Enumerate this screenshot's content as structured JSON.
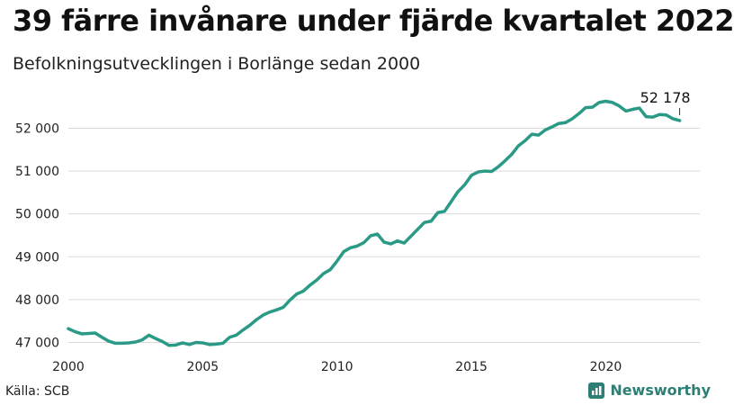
{
  "page": {
    "title": "39 färre invånare under fjärde kvartalet 2022",
    "subtitle": "Befolkningsutvecklingen i Borlänge sedan 2000",
    "source": "Källa: SCB",
    "brand": "Newsworthy",
    "brand_icon": "bar-chart-icon"
  },
  "colors": {
    "line": "#2a9a87",
    "grid": "#d9d9d9",
    "brand": "#2d7f76"
  },
  "chart_data": {
    "type": "line",
    "title": "39 färre invånare under fjärde kvartalet 2022",
    "subtitle": "Befolkningsutvecklingen i Borlänge sedan 2000",
    "xlabel": "",
    "ylabel": "",
    "xlim": [
      2000,
      2023.5
    ],
    "ylim": [
      46800,
      52850
    ],
    "grid": true,
    "x_ticks": [
      2000,
      2005,
      2010,
      2015,
      2020
    ],
    "x_tick_labels": [
      "2000",
      "2005",
      "2010",
      "2015",
      "2020"
    ],
    "y_ticks": [
      47000,
      48000,
      49000,
      50000,
      51000,
      52000
    ],
    "y_tick_labels": [
      "47 000",
      "48 000",
      "49 000",
      "50 000",
      "51 000",
      "52 000"
    ],
    "end_label": "52 178",
    "series": [
      {
        "x": [
          2000.0,
          2000.25,
          2000.5,
          2000.75,
          2001.0,
          2001.25,
          2001.5,
          2001.75,
          2002.0,
          2002.25,
          2002.5,
          2002.75,
          2003.0,
          2003.25,
          2003.5,
          2003.75,
          2004.0,
          2004.25,
          2004.5,
          2004.75,
          2005.0,
          2005.25,
          2005.5,
          2005.75,
          2006.0,
          2006.25,
          2006.5,
          2006.75,
          2007.0,
          2007.25,
          2007.5,
          2007.75,
          2008.0,
          2008.25,
          2008.5,
          2008.75,
          2009.0,
          2009.25,
          2009.5,
          2009.75,
          2010.0,
          2010.25,
          2010.5,
          2010.75,
          2011.0,
          2011.25,
          2011.5,
          2011.75,
          2012.0,
          2012.25,
          2012.5,
          2012.75,
          2013.0,
          2013.25,
          2013.5,
          2013.75,
          2014.0,
          2014.25,
          2014.5,
          2014.75,
          2015.0,
          2015.25,
          2015.5,
          2015.75,
          2016.0,
          2016.25,
          2016.5,
          2016.75,
          2017.0,
          2017.25,
          2017.5,
          2017.75,
          2018.0,
          2018.25,
          2018.5,
          2018.75,
          2019.0,
          2019.25,
          2019.5,
          2019.75,
          2020.0,
          2020.25,
          2020.5,
          2020.75,
          2021.0,
          2021.25,
          2021.5,
          2021.75,
          2022.0,
          2022.25,
          2022.5,
          2022.75
        ],
        "values": [
          47320,
          47250,
          47200,
          47210,
          47220,
          47120,
          47030,
          46980,
          46980,
          46990,
          47010,
          47060,
          47170,
          47090,
          47020,
          46930,
          46940,
          46990,
          46950,
          47000,
          46990,
          46950,
          46960,
          46980,
          47120,
          47170,
          47290,
          47400,
          47530,
          47640,
          47710,
          47760,
          47820,
          47990,
          48130,
          48200,
          48340,
          48460,
          48610,
          48700,
          48900,
          49120,
          49210,
          49250,
          49330,
          49490,
          49530,
          49340,
          49300,
          49370,
          49320,
          49480,
          49640,
          49800,
          49830,
          50030,
          50060,
          50290,
          50520,
          50680,
          50900,
          50980,
          51000,
          50990,
          51100,
          51240,
          51390,
          51590,
          51710,
          51860,
          51840,
          51960,
          52030,
          52110,
          52130,
          52220,
          52340,
          52480,
          52490,
          52600,
          52630,
          52600,
          52520,
          52400,
          52440,
          52470,
          52270,
          52260,
          52320,
          52310,
          52220,
          52178
        ]
      }
    ]
  }
}
